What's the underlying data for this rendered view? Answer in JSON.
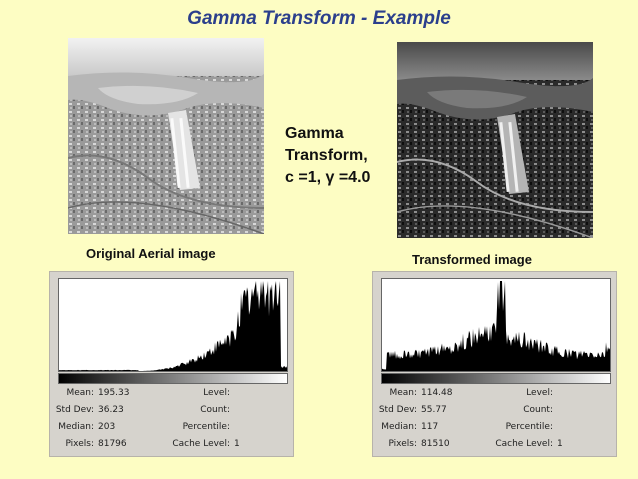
{
  "title": "Gamma Transform - Example",
  "transform_label": {
    "line1": "Gamma",
    "line2": "Transform,",
    "line3": "c =1, γ =4.0"
  },
  "left": {
    "caption": "Original Aerial image",
    "stats": {
      "mean_label": "Mean:",
      "mean": "195.33",
      "std_label": "Std Dev:",
      "std": "36.23",
      "median_label": "Median:",
      "median": "203",
      "pixels_label": "Pixels:",
      "pixels": "81796",
      "level_label": "Level:",
      "level": "",
      "count_label": "Count:",
      "count": "",
      "percentile_label": "Percentile:",
      "percentile": "",
      "cache_label": "Cache Level:",
      "cache": "1"
    }
  },
  "right": {
    "caption": "Transformed image",
    "stats": {
      "mean_label": "Mean:",
      "mean": "114.48",
      "std_label": "Std Dev:",
      "std": "55.77",
      "median_label": "Median:",
      "median": "117",
      "pixels_label": "Pixels:",
      "pixels": "81510",
      "level_label": "Level:",
      "level": "",
      "count_label": "Count:",
      "count": "",
      "percentile_label": "Percentile:",
      "percentile": "",
      "cache_label": "Cache Level:",
      "cache": "1"
    }
  },
  "colors": {
    "background": "#fdfdc3",
    "title": "#2b3f8c",
    "panel": "#d6d3cd"
  }
}
